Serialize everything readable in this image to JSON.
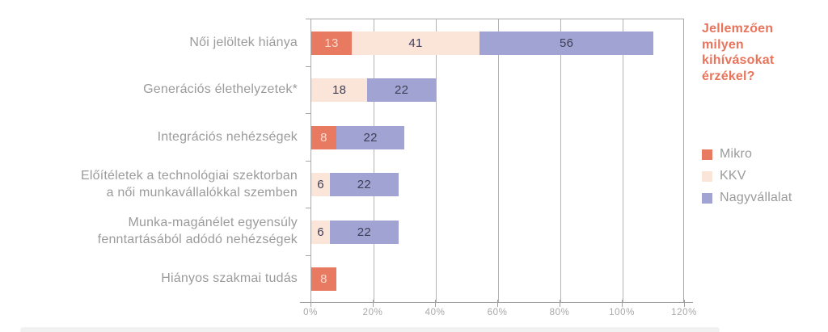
{
  "chart_data": {
    "type": "bar",
    "variant": "horizontal-stacked",
    "title": "Jellemzően milyen kihívásokat érzékel?",
    "title_text": "Jellemzően\nmilyen\nkihívásokat\nérzékel?",
    "title_color": "#e8745c",
    "categories": [
      "Női jelöltek hiánya",
      "Generációs élethelyzetek*",
      "Integrációs nehézségek",
      "Előítéletek a technológiai szektorban\na női munkavállalókkal szemben",
      "Munka-magánélet egyensúly\nfenntartásából adódó nehézségek",
      "Hiányos szakmai tudás"
    ],
    "series": [
      {
        "name": "Mikro",
        "color": "#e87a61",
        "value_text_color": "#f8dbcf",
        "values": [
          13,
          0,
          8,
          0,
          0,
          8
        ]
      },
      {
        "name": "KKV",
        "color": "#fbe5d9",
        "value_text_color": "#3e3e58",
        "values": [
          41,
          18,
          0,
          6,
          6,
          0
        ]
      },
      {
        "name": "Nagyvállalat",
        "color": "#a1a4d2",
        "value_text_color": "#3e3e58",
        "values": [
          56,
          22,
          22,
          22,
          22,
          0
        ]
      }
    ],
    "x_axis": {
      "min": 0,
      "max": 120,
      "step": 20,
      "tick_labels": [
        "0%",
        "20%",
        "40%",
        "60%",
        "80%",
        "100%",
        "120%"
      ]
    },
    "grid": true,
    "legend_position": "right",
    "colors": {
      "category_label": "#9b9b9b",
      "gridline": "#b4b4b4",
      "axis": "#a0a0a0",
      "tick_label": "#a8a8a8"
    }
  }
}
